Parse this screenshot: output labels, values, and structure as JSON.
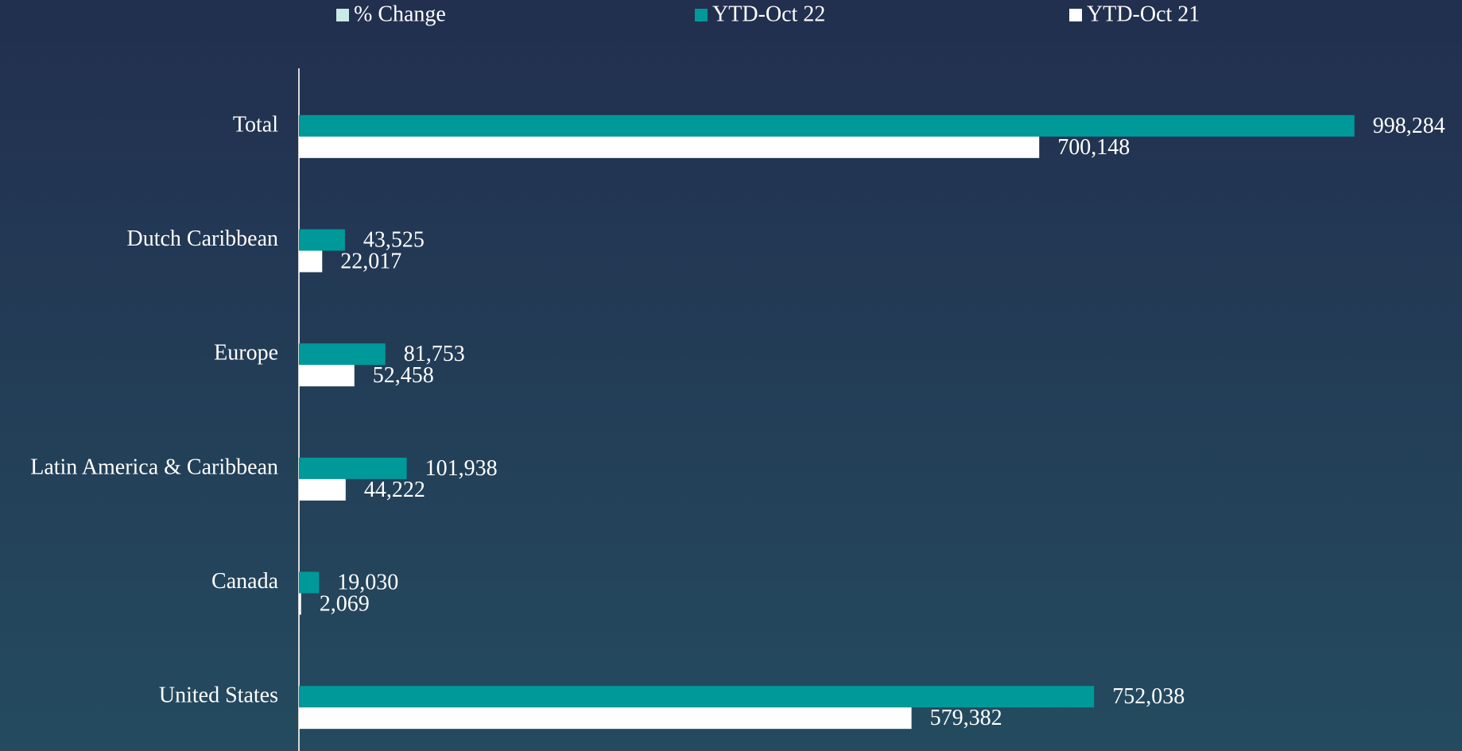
{
  "chart_data": {
    "type": "hbar",
    "categories": [
      "Total",
      "Dutch Caribbean",
      "Europe",
      "Latin America & Caribbean",
      "Canada",
      "United States"
    ],
    "series": [
      {
        "name": "% Change",
        "color": "#c8ebe5",
        "values": [
          null,
          null,
          null,
          null,
          null,
          null
        ]
      },
      {
        "name": "YTD-Oct 22",
        "color": "#009999",
        "values": [
          998284,
          43525,
          81753,
          101938,
          19030,
          752038
        ],
        "value_labels": [
          "998,284",
          "43,525",
          "81,753",
          "101,938",
          "19,030",
          "752,038"
        ]
      },
      {
        "name": "YTD-Oct 21",
        "color": "#ffffff",
        "values": [
          700148,
          22017,
          52458,
          44222,
          2069,
          579382
        ],
        "value_labels": [
          "700,148",
          "22,017",
          "52,458",
          "44,222",
          "2,069",
          "579,382"
        ]
      }
    ],
    "xlim": [
      0,
      1100000
    ]
  }
}
